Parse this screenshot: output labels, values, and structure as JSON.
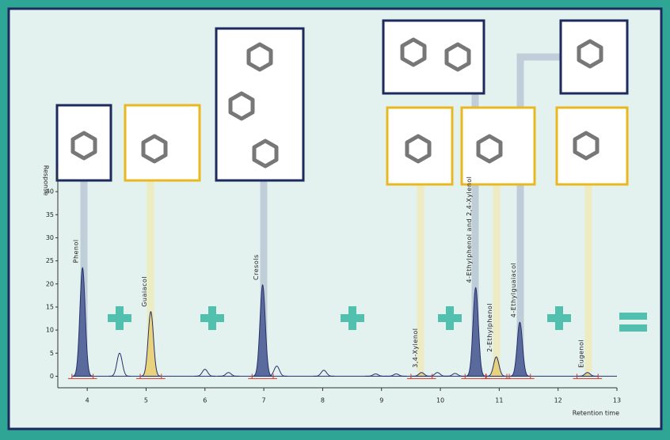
{
  "chart_data": {
    "type": "chromatogram",
    "y_label": "Response",
    "x_label": "Retention time",
    "xlim": [
      3.5,
      13
    ],
    "xticks": [
      4,
      5,
      6,
      7,
      8,
      9,
      10,
      11,
      12,
      13
    ],
    "ylim": [
      -2.5,
      45
    ],
    "yticks": [
      0,
      5,
      10,
      15,
      20,
      25,
      30,
      35,
      40
    ],
    "line_color": "#26306a",
    "peaks": [
      {
        "name": "Phenol",
        "x": 3.92,
        "value": 23.5,
        "color": "#5b6a9c"
      },
      {
        "name": "Guaiacol",
        "x": 5.08,
        "value": 14,
        "color": "#e9d27c"
      },
      {
        "name": "Cresols",
        "x": 6.98,
        "value": 19.8,
        "color": "#5b6a9c"
      },
      {
        "name": "3,4-Xylenol",
        "x": 9.68,
        "value": 0.8,
        "color": "#e9d27c"
      },
      {
        "name": "4-Ethylphenol and 2,4-Xylenol",
        "x": 10.6,
        "value": 19.2,
        "color": "#5b6a9c"
      },
      {
        "name": "2-Ethylphenol",
        "x": 10.95,
        "value": 4.2,
        "color": "#e9d27c"
      },
      {
        "name": "4-Ethylguaiacol",
        "x": 11.35,
        "value": 11.7,
        "color": "#5b6a9c"
      },
      {
        "name": "Eugenol",
        "x": 12.5,
        "value": 0.8,
        "color": "#e9d27c"
      }
    ],
    "minor_peaks": {
      "x": [
        4.55,
        6.0,
        6.4,
        7.22,
        8.02,
        8.9,
        9.25,
        9.95,
        10.25
      ],
      "values": [
        5,
        1.5,
        0.8,
        2.2,
        1.3,
        0.5,
        0.5,
        0.8,
        0.6
      ]
    }
  }
}
